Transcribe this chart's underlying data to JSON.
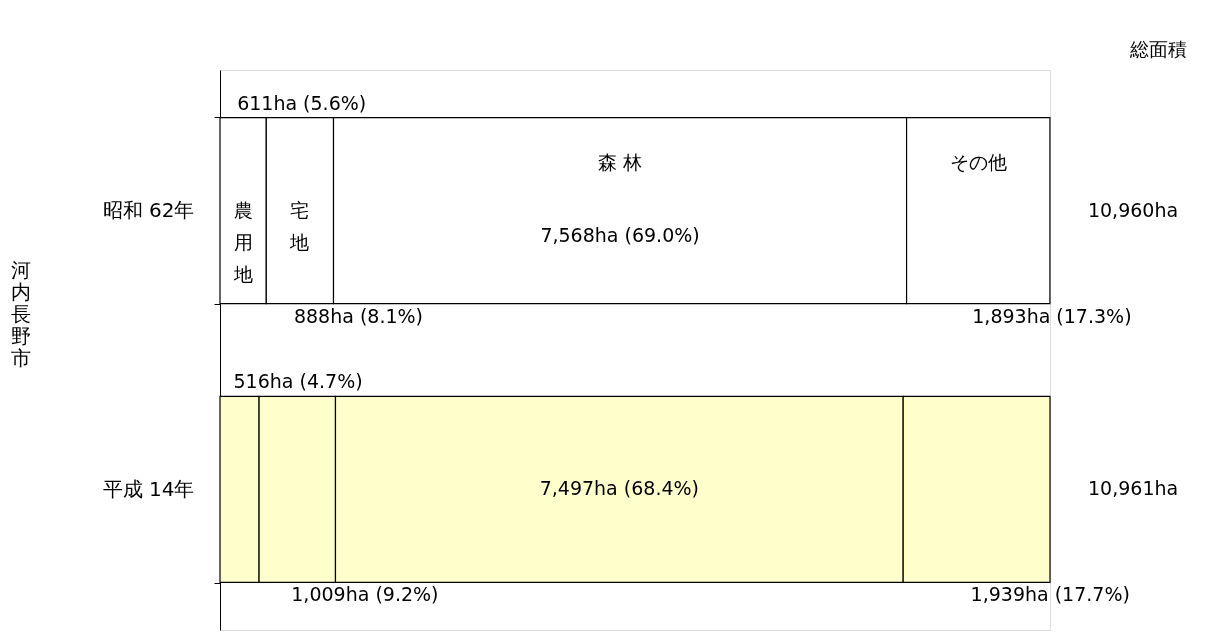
{
  "chart_data": {
    "type": "bar",
    "orientation": "horizontal",
    "stacked": true,
    "ylabel": "河内長野市",
    "categories": [
      "昭和 62年",
      "平成 14年"
    ],
    "series": [
      {
        "name": "農用地",
        "colors": [
          "#ffffff",
          "#ffffcc"
        ],
        "values": [
          611,
          516
        ],
        "value_labels": [
          "611ha (5.6%)",
          "516ha (4.7%)"
        ]
      },
      {
        "name": "宅地",
        "colors": [
          "#ffffff",
          "#ffffcc"
        ],
        "values": [
          888,
          1009
        ],
        "value_labels": [
          "888ha (8.1%)",
          "1,009ha (9.2%)"
        ]
      },
      {
        "name": "森 林",
        "colors": [
          "#ffffff",
          "#ffffcc"
        ],
        "values": [
          7568,
          7497
        ],
        "value_labels": [
          "7,568ha (69.0%)",
          "7,497ha (68.4%)"
        ]
      },
      {
        "name": "その他",
        "colors": [
          "#ffffff",
          "#ffffcc"
        ],
        "values": [
          1893,
          1939
        ],
        "value_labels": [
          "1,893ha (17.3%)",
          "1,939ha (17.7%)"
        ]
      }
    ],
    "totals": [
      "10,960ha",
      "10,961ha"
    ],
    "annotations": [
      "総面積"
    ]
  }
}
